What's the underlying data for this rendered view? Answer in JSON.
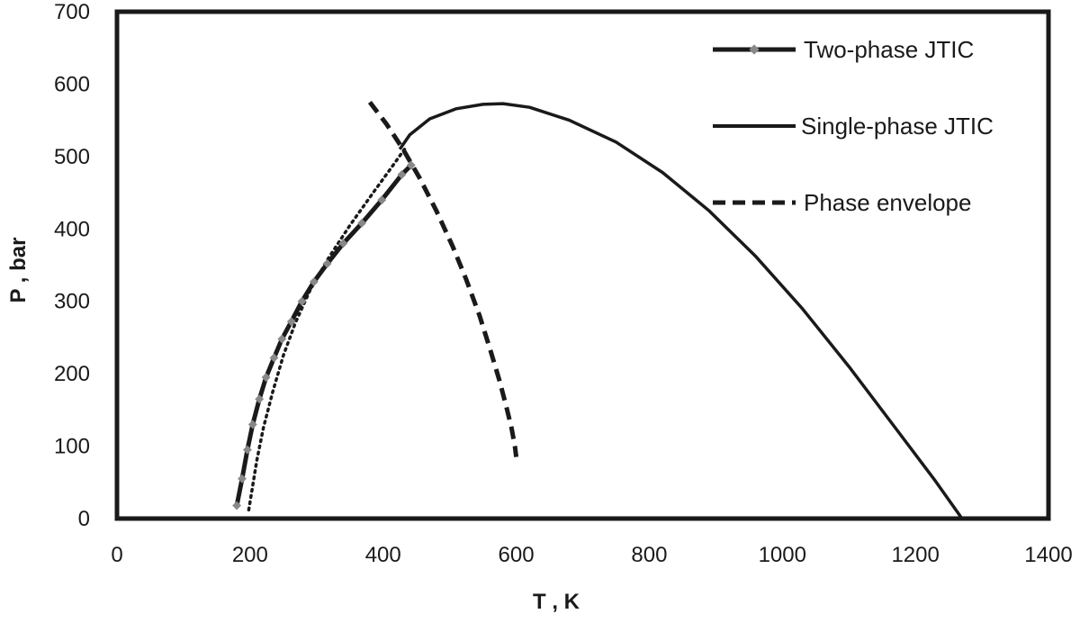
{
  "chart_data": {
    "type": "line",
    "title": "",
    "xlabel": "T , K",
    "ylabel": "P , bar",
    "xlim": [
      0,
      1400
    ],
    "ylim": [
      0,
      700
    ],
    "xticks": [
      0,
      200,
      400,
      600,
      800,
      1000,
      1200,
      1400
    ],
    "yticks": [
      0,
      100,
      200,
      300,
      400,
      500,
      600,
      700
    ],
    "xtick_labels": [
      "0",
      "200",
      "400",
      "600",
      "800",
      "1000",
      "1200",
      "1400"
    ],
    "ytick_labels": [
      "0",
      "100",
      "200",
      "300",
      "400",
      "500",
      "600",
      "700"
    ],
    "grid": false,
    "legend_position": "top-right",
    "series": [
      {
        "name": "Two-phase JTIC",
        "style": "solid-with-markers",
        "color": "#1a1a1a",
        "marker_color": "#888888",
        "x": [
          180,
          188,
          196,
          204,
          214,
          224,
          236,
          248,
          262,
          278,
          296,
          316,
          340,
          368,
          398,
          428,
          442
        ],
        "y": [
          18,
          55,
          95,
          130,
          165,
          195,
          222,
          248,
          272,
          300,
          327,
          352,
          380,
          408,
          440,
          475,
          488
        ]
      },
      {
        "name": "Single-phase JTIC",
        "style": "solid",
        "color": "#1a1a1a",
        "x": [
          425,
          440,
          470,
          510,
          550,
          580,
          620,
          680,
          750,
          820,
          890,
          960,
          1030,
          1100,
          1170,
          1230,
          1270
        ],
        "y": [
          510,
          530,
          552,
          566,
          572,
          573,
          568,
          550,
          520,
          478,
          425,
          362,
          290,
          210,
          125,
          52,
          0
        ]
      },
      {
        "name": "Phase envelope",
        "style": "dashed",
        "color": "#1a1a1a",
        "x": [
          380,
          405,
          430,
          455,
          480,
          505,
          525,
          545,
          562,
          575,
          585,
          593,
          598,
          600
        ],
        "y": [
          575,
          545,
          510,
          470,
          425,
          375,
          330,
          280,
          230,
          190,
          155,
          125,
          100,
          85
        ]
      },
      {
        "name": "",
        "style": "dotted",
        "color": "#1a1a1a",
        "x": [
          198,
          203,
          210,
          220,
          234,
          250,
          268,
          290,
          318,
          350,
          385,
          415,
          432
        ],
        "y": [
          12,
          40,
          80,
          125,
          175,
          225,
          270,
          315,
          360,
          405,
          450,
          488,
          510
        ]
      }
    ]
  }
}
